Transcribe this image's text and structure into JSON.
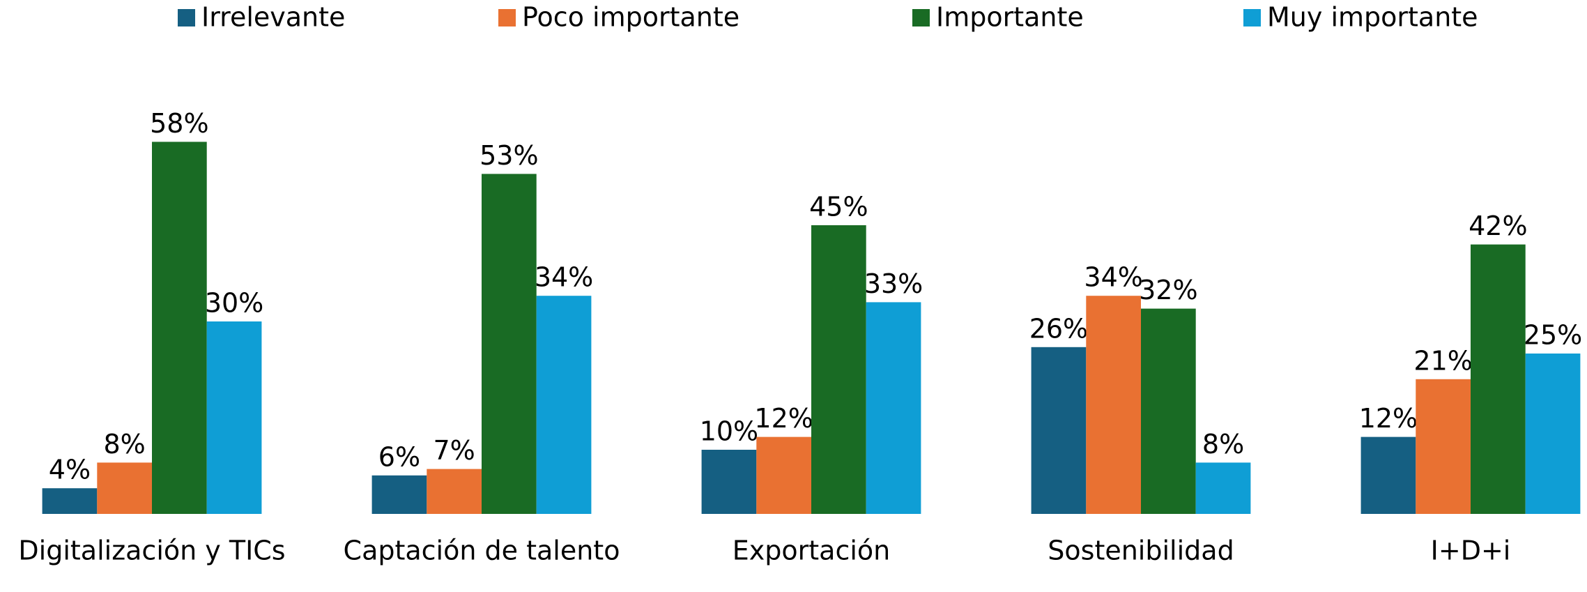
{
  "chart_data": {
    "type": "bar",
    "categories": [
      "Digitalización y TICs",
      "Captación de talento",
      "Exportación",
      "Sostenibilidad",
      "I+D+i"
    ],
    "series": [
      {
        "name": "Irrelevante",
        "color": "#155f82",
        "values": [
          4,
          6,
          10,
          26,
          12
        ],
        "value_labels": [
          "4%",
          "6%",
          "10%",
          "26%",
          "12%"
        ]
      },
      {
        "name": "Poco importante",
        "color": "#e97132",
        "values": [
          8,
          7,
          12,
          34,
          21
        ],
        "value_labels": [
          "8%",
          "7%",
          "12%",
          "34%",
          "21%"
        ]
      },
      {
        "name": "Importante",
        "color": "#196b24",
        "values": [
          58,
          53,
          45,
          32,
          42
        ],
        "value_labels": [
          "58%",
          "53%",
          "45%",
          "32%",
          "42%"
        ]
      },
      {
        "name": "Muy importante",
        "color": "#0f9ed5",
        "values": [
          30,
          34,
          33,
          8,
          25
        ],
        "value_labels": [
          "30%",
          "34%",
          "33%",
          "8%",
          "25%"
        ]
      }
    ],
    "ylim": [
      0,
      60
    ],
    "legend": "top"
  }
}
